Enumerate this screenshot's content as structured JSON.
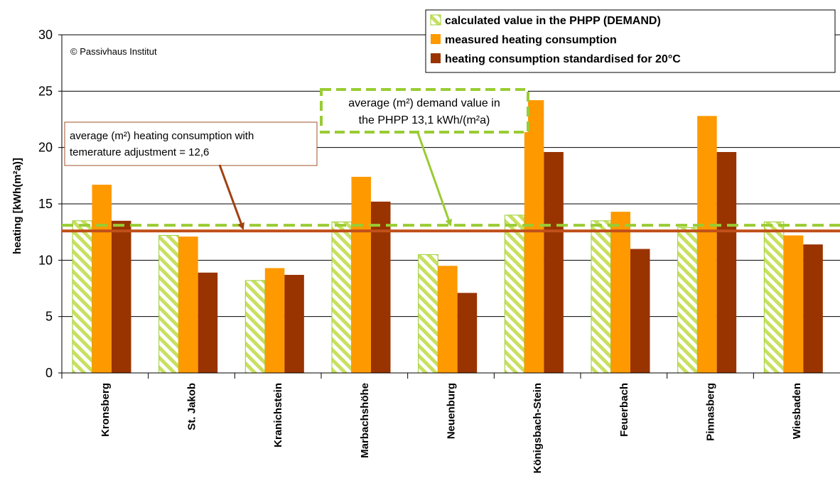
{
  "chart_data": {
    "type": "bar",
    "title": "",
    "xlabel": "",
    "ylabel": "heating [kWh(m²a)]",
    "ylim": [
      0,
      30
    ],
    "yticks": [
      0,
      5,
      10,
      15,
      20,
      25,
      30
    ],
    "grid": "horizontal",
    "legend_position": "top-right",
    "copyright": "© Passivhaus Institut",
    "categories": [
      "Kronsberg",
      "St. Jakob",
      "Kranichstein",
      "Marbachshöhe",
      "Neuenburg",
      "Königsbach-Stein",
      "Feuerbach",
      "Pinnasberg",
      "Wiesbaden"
    ],
    "series": [
      {
        "name": "calculated value in the PHPP (DEMAND)",
        "color": "#c8e060",
        "pattern": "diagonal-hatch",
        "values": [
          13.5,
          12.2,
          8.2,
          13.4,
          10.5,
          14.0,
          13.5,
          12.9,
          13.4
        ]
      },
      {
        "name": "measured heating consumption",
        "color": "#ff9900",
        "values": [
          16.7,
          12.1,
          9.3,
          17.4,
          9.5,
          24.2,
          14.3,
          22.8,
          12.2
        ]
      },
      {
        "name": "heating consumption standardised for 20°C",
        "color": "#993300",
        "values": [
          13.5,
          8.9,
          8.7,
          15.2,
          7.1,
          19.6,
          11.0,
          19.6,
          11.4
        ]
      }
    ],
    "reference_lines": [
      {
        "value": 12.6,
        "color": "#c0501a",
        "style": "solid",
        "label": [
          "average (m²) heating consumption with",
          "temerature adjustment = 12,6"
        ]
      },
      {
        "value": 13.1,
        "color": "#99cc33",
        "style": "dashed",
        "label": [
          "average (m²) demand value in",
          "the PHPP 13,1 kWh/(m²a)"
        ]
      }
    ]
  }
}
